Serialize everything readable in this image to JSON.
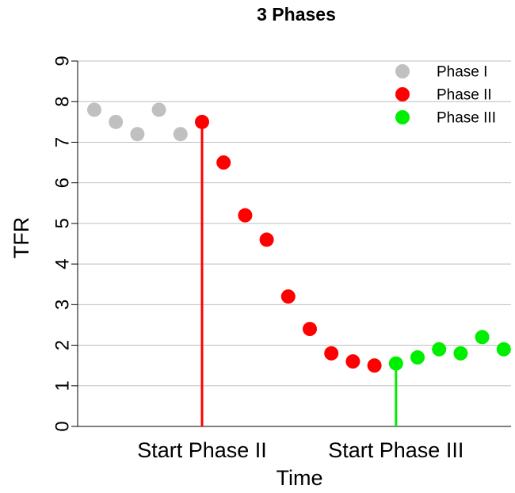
{
  "chart_data": {
    "type": "scatter",
    "title": "3 Phases",
    "xlabel": "Time",
    "ylabel": "TFR",
    "ylim": [
      0,
      9
    ],
    "yticks": [
      0,
      1,
      2,
      3,
      4,
      5,
      6,
      7,
      8,
      9
    ],
    "grid": "horizontal",
    "legend_position": "top-right",
    "series": [
      {
        "name": "Phase I",
        "color": "#c0c0c0",
        "points": [
          {
            "x": 1,
            "y": 7.8
          },
          {
            "x": 2,
            "y": 7.5
          },
          {
            "x": 3,
            "y": 7.2
          },
          {
            "x": 4,
            "y": 7.8
          },
          {
            "x": 5,
            "y": 7.2
          }
        ]
      },
      {
        "name": "Phase II",
        "color": "#ff0000",
        "points": [
          {
            "x": 6,
            "y": 7.5
          },
          {
            "x": 7,
            "y": 6.5
          },
          {
            "x": 8,
            "y": 5.2
          },
          {
            "x": 9,
            "y": 4.6
          },
          {
            "x": 10,
            "y": 3.2
          },
          {
            "x": 11,
            "y": 2.4
          },
          {
            "x": 12,
            "y": 1.8
          },
          {
            "x": 13,
            "y": 1.6
          },
          {
            "x": 14,
            "y": 1.5
          }
        ]
      },
      {
        "name": "Phase III",
        "color": "#00ee00",
        "points": [
          {
            "x": 15,
            "y": 1.55
          },
          {
            "x": 16,
            "y": 1.7
          },
          {
            "x": 17,
            "y": 1.9
          },
          {
            "x": 18,
            "y": 1.8
          },
          {
            "x": 19,
            "y": 2.2
          },
          {
            "x": 20,
            "y": 1.9
          }
        ]
      }
    ],
    "annotations": [
      {
        "label": "Start Phase II",
        "x": 6,
        "y": 7.5,
        "color": "#ff0000"
      },
      {
        "label": "Start Phase III",
        "x": 15,
        "y": 1.55,
        "color": "#00ee00"
      }
    ]
  }
}
